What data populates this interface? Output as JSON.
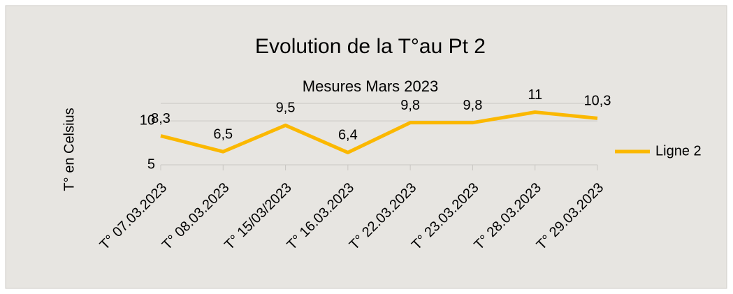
{
  "chart_data": {
    "type": "line",
    "title": "Evolution de la T°au Pt 2",
    "subtitle": "Mesures Mars 2023",
    "y_label": "T° en Celsius",
    "categories": [
      "T° 07.03.2023",
      "T° 08.03.2023",
      "T° 15/03/2023",
      "T° 16.03.2023",
      "T° 22.03.2023",
      "T° 23.03.2023",
      "T° 28.03.2023",
      "T° 29.03.2023"
    ],
    "series": [
      {
        "name": "Ligne 2",
        "color": "#fbb800",
        "values": [
          8.3,
          6.5,
          9.5,
          6.4,
          9.8,
          9.8,
          11,
          10.3
        ],
        "value_labels": [
          "8,3",
          "6,5",
          "9,5",
          "6,4",
          "9,8",
          "9,8",
          "11",
          "10,3"
        ]
      }
    ],
    "ylim": [
      5,
      12
    ],
    "yticks": [
      5,
      10
    ],
    "grid": true,
    "legend": "right"
  }
}
